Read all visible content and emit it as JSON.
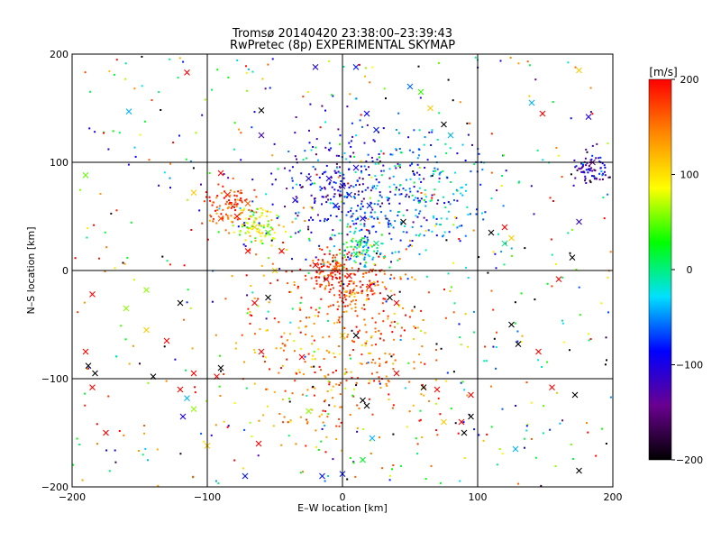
{
  "chart_data": {
    "type": "scatter",
    "title": "Tromsø 20140420 23:38:00–23:39:43",
    "subtitle": "RwPretec (8p) EXPERIMENTAL SKYMAP",
    "xlabel": "E–W location [km]",
    "ylabel": "N–S location [km]",
    "xlim": [
      -200,
      200
    ],
    "ylim": [
      -200,
      200
    ],
    "xticks": [
      -200,
      -100,
      0,
      100,
      200
    ],
    "yticks": [
      -200,
      -100,
      0,
      100,
      200
    ],
    "xtick_labels": [
      "−200",
      "−100",
      "0",
      "100",
      "200"
    ],
    "ytick_labels": [
      "−200",
      "−100",
      "0",
      "100",
      "200"
    ],
    "grid": true,
    "colorbar": {
      "title": "[m/s]",
      "min": -200,
      "max": 200,
      "ticks": [
        -200,
        -100,
        0,
        100,
        200
      ],
      "tick_labels": [
        "−200",
        "−100",
        "0",
        "100",
        "200"
      ],
      "stops": [
        "#000000",
        "#6a0090",
        "#0000ff",
        "#00e0ff",
        "#00ff00",
        "#ffff00",
        "#ff8800",
        "#ff0000"
      ],
      "placement": "right"
    },
    "cluster_summary": [
      {
        "x": -85,
        "y": 58,
        "spread": 10,
        "velocity": 170
      },
      {
        "x": -62,
        "y": 42,
        "spread": 10,
        "velocity": 75
      },
      {
        "x": -10,
        "y": 2,
        "spread": 9,
        "velocity": 190
      },
      {
        "x": 10,
        "y": -12,
        "spread": 16,
        "velocity": 180
      },
      {
        "x": 15,
        "y": 20,
        "spread": 10,
        "velocity": 0
      },
      {
        "x": 0,
        "y": 78,
        "spread": 30,
        "velocity": -100
      },
      {
        "x": 50,
        "y": 70,
        "spread": 28,
        "velocity": -50
      },
      {
        "x": 0,
        "y": -75,
        "spread": 40,
        "velocity": 150
      },
      {
        "x": 185,
        "y": 95,
        "spread": 8,
        "velocity": -120
      }
    ],
    "markers": [
      {
        "x": -115,
        "y": 183,
        "v": 200,
        "m": "x"
      },
      {
        "x": -158,
        "y": 147,
        "v": -40,
        "m": "x"
      },
      {
        "x": -85,
        "y": 70,
        "v": 190,
        "m": "x"
      },
      {
        "x": -70,
        "y": 62,
        "v": 160,
        "m": "x"
      },
      {
        "x": -90,
        "y": 48,
        "v": 170,
        "m": "x"
      },
      {
        "x": -78,
        "y": 50,
        "v": 200,
        "m": "x"
      },
      {
        "x": -65,
        "y": 40,
        "v": 110,
        "m": "x"
      },
      {
        "x": -55,
        "y": 35,
        "v": 40,
        "m": "x"
      },
      {
        "x": -90,
        "y": 90,
        "v": 200,
        "m": "x"
      },
      {
        "x": -190,
        "y": 88,
        "v": 50,
        "m": "x"
      },
      {
        "x": -110,
        "y": 72,
        "v": 110,
        "m": "x"
      },
      {
        "x": -185,
        "y": -22,
        "v": 200,
        "m": "x"
      },
      {
        "x": -145,
        "y": -18,
        "v": 60,
        "m": "x"
      },
      {
        "x": -190,
        "y": -75,
        "v": 200,
        "m": "x"
      },
      {
        "x": -188,
        "y": -88,
        "v": -200,
        "m": "x"
      },
      {
        "x": -183,
        "y": -95,
        "v": -200,
        "m": "x"
      },
      {
        "x": -185,
        "y": -108,
        "v": 200,
        "m": "x"
      },
      {
        "x": -140,
        "y": -98,
        "v": -200,
        "m": "x"
      },
      {
        "x": -115,
        "y": -118,
        "v": -40,
        "m": "x"
      },
      {
        "x": -110,
        "y": -128,
        "v": 60,
        "m": "x"
      },
      {
        "x": -118,
        "y": -135,
        "v": -100,
        "m": "x"
      },
      {
        "x": -175,
        "y": -150,
        "v": 200,
        "m": "x"
      },
      {
        "x": -100,
        "y": -162,
        "v": 110,
        "m": "x"
      },
      {
        "x": -62,
        "y": -160,
        "v": 200,
        "m": "x"
      },
      {
        "x": -72,
        "y": -190,
        "v": -80,
        "m": "x"
      },
      {
        "x": -15,
        "y": -190,
        "v": -80,
        "m": "x"
      },
      {
        "x": 0,
        "y": -188,
        "v": -80,
        "m": "x"
      },
      {
        "x": 15,
        "y": -175,
        "v": 20,
        "m": "x"
      },
      {
        "x": -60,
        "y": 148,
        "v": -200,
        "m": "x"
      },
      {
        "x": -60,
        "y": 125,
        "v": -120,
        "m": "x"
      },
      {
        "x": -20,
        "y": 188,
        "v": -100,
        "m": "x"
      },
      {
        "x": 10,
        "y": 188,
        "v": -80,
        "m": "x"
      },
      {
        "x": 18,
        "y": 145,
        "v": -90,
        "m": "x"
      },
      {
        "x": 25,
        "y": 130,
        "v": -80,
        "m": "x"
      },
      {
        "x": 50,
        "y": 170,
        "v": -60,
        "m": "x"
      },
      {
        "x": 58,
        "y": 165,
        "v": 40,
        "m": "x"
      },
      {
        "x": 65,
        "y": 150,
        "v": 110,
        "m": "x"
      },
      {
        "x": 75,
        "y": 135,
        "v": -200,
        "m": "x"
      },
      {
        "x": 80,
        "y": 125,
        "v": -40,
        "m": "x"
      },
      {
        "x": 140,
        "y": 155,
        "v": -40,
        "m": "x"
      },
      {
        "x": 148,
        "y": 145,
        "v": 200,
        "m": "x"
      },
      {
        "x": 175,
        "y": 185,
        "v": 110,
        "m": "x"
      },
      {
        "x": 182,
        "y": 142,
        "v": -100,
        "m": "x"
      },
      {
        "x": 175,
        "y": 45,
        "v": -110,
        "m": "x"
      },
      {
        "x": 185,
        "y": 100,
        "v": -150,
        "m": "x"
      },
      {
        "x": 120,
        "y": 40,
        "v": 200,
        "m": "x"
      },
      {
        "x": 125,
        "y": 30,
        "v": 110,
        "m": "x"
      },
      {
        "x": 120,
        "y": 25,
        "v": 0,
        "m": "x"
      },
      {
        "x": 110,
        "y": 35,
        "v": -200,
        "m": "x"
      },
      {
        "x": 170,
        "y": 12,
        "v": -200,
        "m": "x"
      },
      {
        "x": 160,
        "y": -8,
        "v": 200,
        "m": "x"
      },
      {
        "x": 125,
        "y": -50,
        "v": -200,
        "m": "x"
      },
      {
        "x": 130,
        "y": -68,
        "v": -200,
        "m": "x"
      },
      {
        "x": 145,
        "y": -75,
        "v": 200,
        "m": "x"
      },
      {
        "x": 155,
        "y": -108,
        "v": 200,
        "m": "x"
      },
      {
        "x": 172,
        "y": -115,
        "v": -200,
        "m": "x"
      },
      {
        "x": 175,
        "y": -185,
        "v": -200,
        "m": "x"
      },
      {
        "x": 128,
        "y": -165,
        "v": -40,
        "m": "x"
      },
      {
        "x": 95,
        "y": -135,
        "v": -200,
        "m": "x"
      },
      {
        "x": 88,
        "y": -140,
        "v": 200,
        "m": "x"
      },
      {
        "x": 95,
        "y": -115,
        "v": 200,
        "m": "x"
      },
      {
        "x": 70,
        "y": -110,
        "v": 200,
        "m": "x"
      },
      {
        "x": 60,
        "y": -108,
        "v": -200,
        "m": "x"
      },
      {
        "x": 15,
        "y": -120,
        "v": -200,
        "m": "x"
      },
      {
        "x": 18,
        "y": -125,
        "v": -200,
        "m": "x"
      },
      {
        "x": -70,
        "y": 18,
        "v": 200,
        "m": "x"
      },
      {
        "x": -50,
        "y": 0,
        "v": 110,
        "m": "x"
      },
      {
        "x": -45,
        "y": 18,
        "v": 200,
        "m": "x"
      },
      {
        "x": -20,
        "y": 5,
        "v": 200,
        "m": "x"
      },
      {
        "x": -12,
        "y": -8,
        "v": 200,
        "m": "x"
      },
      {
        "x": -5,
        "y": 2,
        "v": 160,
        "m": "x"
      },
      {
        "x": 5,
        "y": -5,
        "v": 200,
        "m": "x"
      },
      {
        "x": 20,
        "y": -15,
        "v": 200,
        "m": "x"
      },
      {
        "x": 35,
        "y": -25,
        "v": -200,
        "m": "x"
      },
      {
        "x": 40,
        "y": -30,
        "v": 200,
        "m": "x"
      },
      {
        "x": 25,
        "y": 25,
        "v": 0,
        "m": "x"
      },
      {
        "x": 10,
        "y": 15,
        "v": 20,
        "m": "x"
      },
      {
        "x": 15,
        "y": 48,
        "v": -100,
        "m": "x"
      },
      {
        "x": 45,
        "y": 45,
        "v": -200,
        "m": "x"
      },
      {
        "x": 0,
        "y": 78,
        "v": -100,
        "m": "x"
      },
      {
        "x": -10,
        "y": 85,
        "v": -100,
        "m": "x"
      },
      {
        "x": -25,
        "y": 85,
        "v": -100,
        "m": "x"
      },
      {
        "x": 5,
        "y": 70,
        "v": -80,
        "m": "x"
      },
      {
        "x": 10,
        "y": 95,
        "v": -100,
        "m": "x"
      },
      {
        "x": -35,
        "y": 65,
        "v": -100,
        "m": "x"
      },
      {
        "x": -5,
        "y": 60,
        "v": -90,
        "m": "x"
      },
      {
        "x": 20,
        "y": 60,
        "v": -80,
        "m": "x"
      },
      {
        "x": -65,
        "y": -30,
        "v": 200,
        "m": "x"
      },
      {
        "x": -55,
        "y": -25,
        "v": -200,
        "m": "x"
      },
      {
        "x": -120,
        "y": -30,
        "v": -200,
        "m": "x"
      },
      {
        "x": -160,
        "y": -35,
        "v": 60,
        "m": "x"
      },
      {
        "x": -145,
        "y": -55,
        "v": 110,
        "m": "x"
      },
      {
        "x": -130,
        "y": -65,
        "v": 200,
        "m": "x"
      },
      {
        "x": -90,
        "y": -90,
        "v": -200,
        "m": "x"
      },
      {
        "x": -110,
        "y": -95,
        "v": 200,
        "m": "x"
      },
      {
        "x": -93,
        "y": -98,
        "v": 200,
        "m": "x"
      },
      {
        "x": -120,
        "y": -110,
        "v": 200,
        "m": "x"
      },
      {
        "x": -60,
        "y": -75,
        "v": 200,
        "m": "x"
      },
      {
        "x": 0,
        "y": -60,
        "v": 110,
        "m": "x"
      },
      {
        "x": 10,
        "y": -60,
        "v": -200,
        "m": "x"
      },
      {
        "x": -30,
        "y": -80,
        "v": 200,
        "m": "x"
      },
      {
        "x": 40,
        "y": -95,
        "v": 200,
        "m": "x"
      },
      {
        "x": -25,
        "y": -130,
        "v": 60,
        "m": "x"
      },
      {
        "x": 22,
        "y": -155,
        "v": -40,
        "m": "x"
      },
      {
        "x": 75,
        "y": -140,
        "v": 110,
        "m": "x"
      },
      {
        "x": 90,
        "y": -150,
        "v": -200,
        "m": "x"
      }
    ]
  }
}
